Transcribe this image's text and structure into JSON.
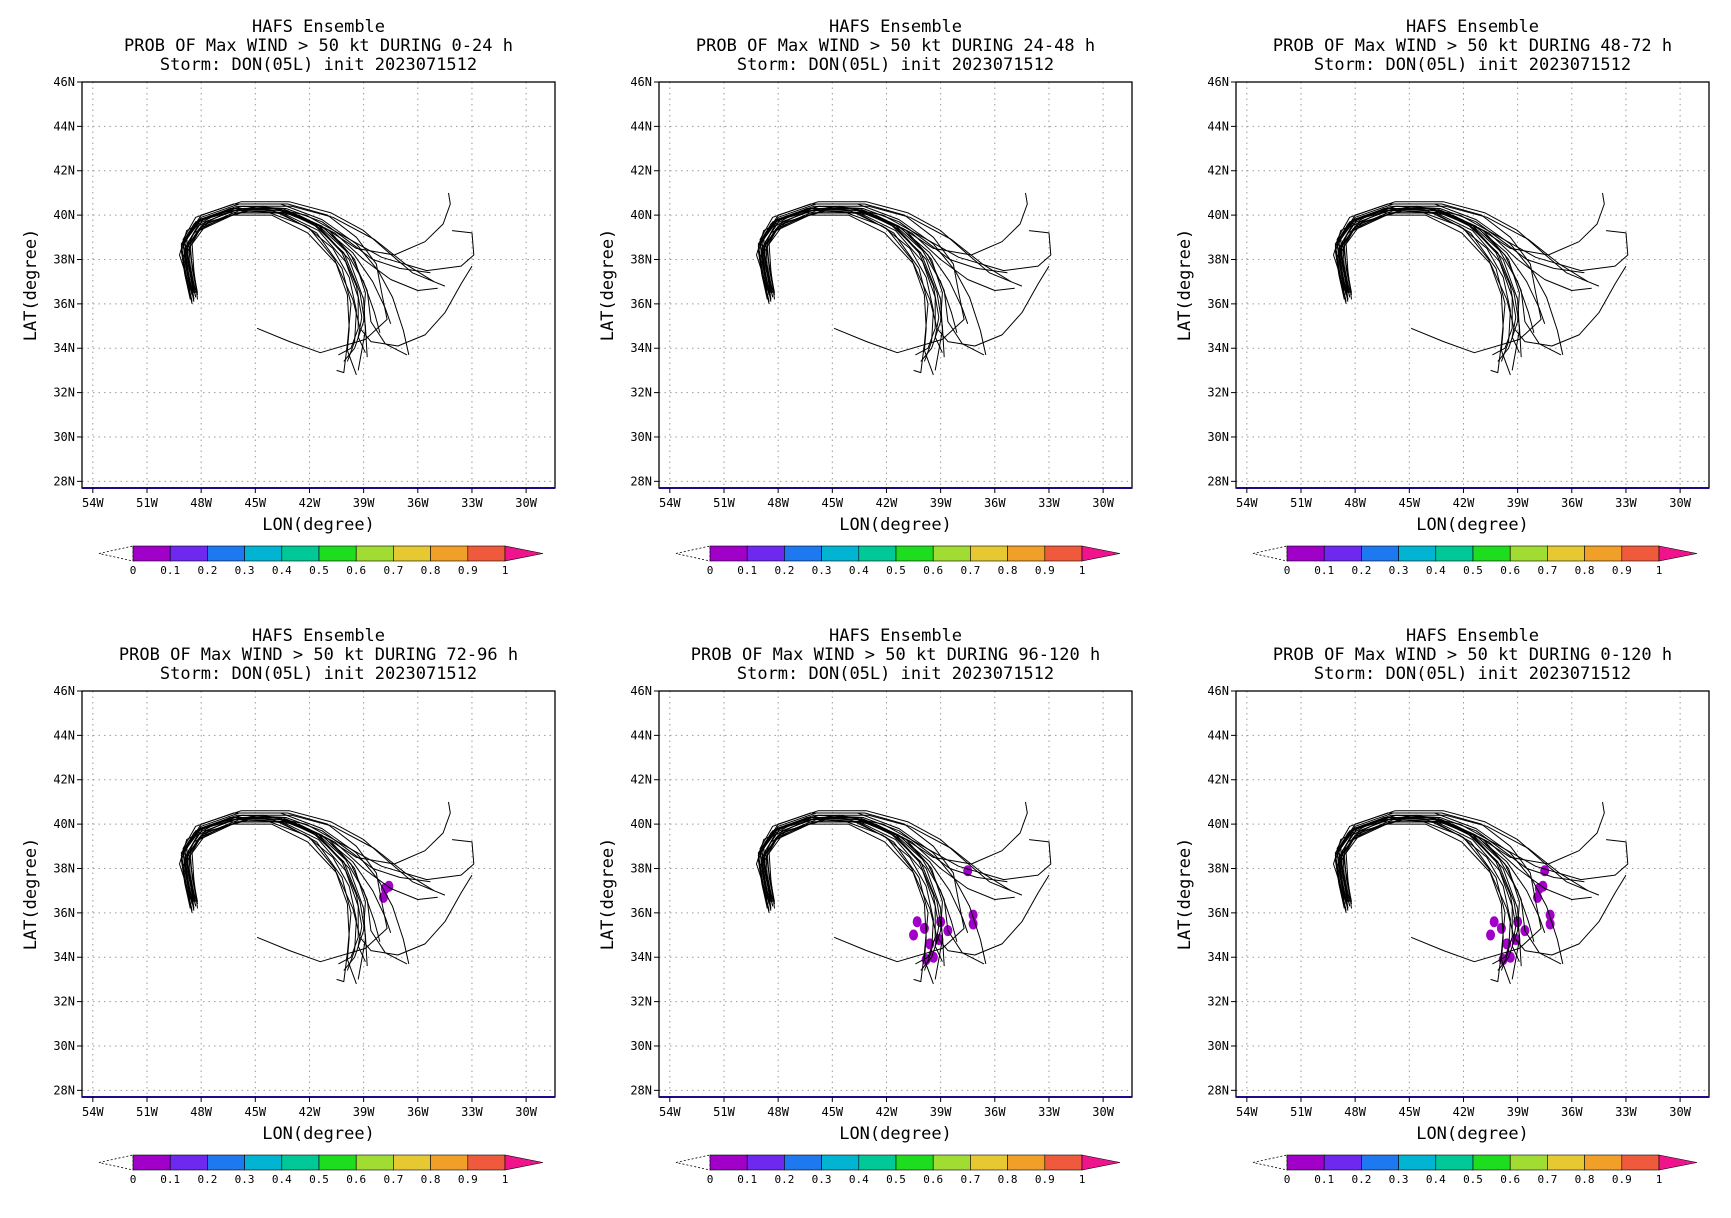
{
  "panels": [
    {
      "title_1": "HAFS Ensemble",
      "title_2": "PROB OF Max WIND > 50 kt DURING  0-24 h",
      "title_3": "Storm: DON(05L) init 2023071512",
      "blobs": []
    },
    {
      "title_1": "HAFS Ensemble",
      "title_2": "PROB OF Max WIND > 50 kt DURING 24-48 h",
      "title_3": "Storm: DON(05L) init 2023071512",
      "blobs": []
    },
    {
      "title_1": "HAFS Ensemble",
      "title_2": "PROB OF Max WIND > 50 kt DURING 48-72 h",
      "title_3": "Storm: DON(05L) init 2023071512",
      "blobs": []
    },
    {
      "title_1": "HAFS Ensemble",
      "title_2": "PROB OF Max WIND > 50 kt DURING 72-96 h",
      "title_3": "Storm: DON(05L) init 2023071512",
      "blobs": [
        {
          "lon": -37.8,
          "lat": 37.1,
          "p": 0.05
        },
        {
          "lon": -37.6,
          "lat": 37.2,
          "p": 0.05
        },
        {
          "lon": -37.9,
          "lat": 36.7,
          "p": 0.05
        }
      ]
    },
    {
      "title_1": "HAFS Ensemble",
      "title_2": "PROB OF Max WIND > 50 kt DURING 96-120 h",
      "title_3": "Storm: DON(05L) init 2023071512",
      "blobs": [
        {
          "lon": -40.3,
          "lat": 35.6,
          "p": 0.05
        },
        {
          "lon": -40.5,
          "lat": 35.0,
          "p": 0.05
        },
        {
          "lon": -39.9,
          "lat": 35.3,
          "p": 0.05
        },
        {
          "lon": -39.6,
          "lat": 34.6,
          "p": 0.05
        },
        {
          "lon": -39.4,
          "lat": 34.0,
          "p": 0.05
        },
        {
          "lon": -39.1,
          "lat": 34.8,
          "p": 0.05
        },
        {
          "lon": -39.0,
          "lat": 35.6,
          "p": 0.05
        },
        {
          "lon": -38.6,
          "lat": 35.2,
          "p": 0.05
        },
        {
          "lon": -39.8,
          "lat": 33.9,
          "p": 0.05
        },
        {
          "lon": -37.2,
          "lat": 35.9,
          "p": 0.05
        },
        {
          "lon": -37.2,
          "lat": 35.5,
          "p": 0.05
        },
        {
          "lon": -37.5,
          "lat": 37.9,
          "p": 0.05
        }
      ]
    },
    {
      "title_1": "HAFS Ensemble",
      "title_2": "PROB OF Max WIND > 50 kt DURING 0-120 h",
      "title_3": "Storm: DON(05L) init 2023071512",
      "blobs": [
        {
          "lon": -40.3,
          "lat": 35.6,
          "p": 0.05
        },
        {
          "lon": -40.5,
          "lat": 35.0,
          "p": 0.05
        },
        {
          "lon": -39.9,
          "lat": 35.3,
          "p": 0.05
        },
        {
          "lon": -39.6,
          "lat": 34.6,
          "p": 0.05
        },
        {
          "lon": -39.4,
          "lat": 34.0,
          "p": 0.05
        },
        {
          "lon": -39.1,
          "lat": 34.8,
          "p": 0.05
        },
        {
          "lon": -39.0,
          "lat": 35.6,
          "p": 0.05
        },
        {
          "lon": -38.6,
          "lat": 35.2,
          "p": 0.05
        },
        {
          "lon": -39.8,
          "lat": 33.9,
          "p": 0.05
        },
        {
          "lon": -37.2,
          "lat": 35.9,
          "p": 0.05
        },
        {
          "lon": -37.2,
          "lat": 35.5,
          "p": 0.05
        },
        {
          "lon": -37.5,
          "lat": 37.9,
          "p": 0.05
        },
        {
          "lon": -37.8,
          "lat": 37.1,
          "p": 0.05
        },
        {
          "lon": -37.6,
          "lat": 37.2,
          "p": 0.05
        },
        {
          "lon": -37.9,
          "lat": 36.7,
          "p": 0.05
        }
      ]
    }
  ],
  "axes": {
    "xlabel": "LON(degree)",
    "ylabel": "LAT(degree)",
    "xticks": [
      {
        "v": -54,
        "l": "54W"
      },
      {
        "v": -51,
        "l": "51W"
      },
      {
        "v": -48,
        "l": "48W"
      },
      {
        "v": -45,
        "l": "45W"
      },
      {
        "v": -42,
        "l": "42W"
      },
      {
        "v": -39,
        "l": "39W"
      },
      {
        "v": -36,
        "l": "36W"
      },
      {
        "v": -33,
        "l": "33W"
      },
      {
        "v": -30,
        "l": "30W"
      }
    ],
    "yticks": [
      {
        "v": 28,
        "l": "28N"
      },
      {
        "v": 30,
        "l": "30N"
      },
      {
        "v": 32,
        "l": "32N"
      },
      {
        "v": 34,
        "l": "34N"
      },
      {
        "v": 36,
        "l": "36N"
      },
      {
        "v": 38,
        "l": "38N"
      },
      {
        "v": 40,
        "l": "40N"
      },
      {
        "v": 42,
        "l": "42N"
      },
      {
        "v": 44,
        "l": "44N"
      },
      {
        "v": 46,
        "l": "46N"
      }
    ],
    "xlim": [
      -54.6,
      -28.4
    ],
    "ylim": [
      27.7,
      46
    ]
  },
  "colorbar": {
    "labels": [
      "0",
      "0.1",
      "0.2",
      "0.3",
      "0.4",
      "0.5",
      "0.6",
      "0.7",
      "0.8",
      "0.9",
      "1"
    ],
    "colors": [
      "#a000c8",
      "#6e28f0",
      "#1e78f0",
      "#00b4d2",
      "#00c896",
      "#1edc1e",
      "#a0dc32",
      "#e6c832",
      "#f0a028",
      "#f05a3c"
    ],
    "over_color": "#f0148c",
    "under_color": "#ffffff"
  },
  "chart_data": {
    "type": "map",
    "storm": "DON(05L)",
    "init": "2023071512",
    "xlabel": "LON(degree)",
    "ylabel": "LAT(degree)",
    "xlim": [
      -54.6,
      -28.4
    ],
    "ylim": [
      27.7,
      46
    ],
    "grid": true,
    "colorbar_levels": [
      0,
      0.1,
      0.2,
      0.3,
      0.4,
      0.5,
      0.6,
      0.7,
      0.8,
      0.9,
      1
    ],
    "tracks": [
      [
        [
          -48.4,
          36.2
        ],
        [
          -48.7,
          37.4
        ],
        [
          -48.9,
          38.5
        ],
        [
          -48.2,
          39.5
        ],
        [
          -46.3,
          40.2
        ],
        [
          -43.9,
          40.3
        ],
        [
          -41.8,
          39.6
        ],
        [
          -40.1,
          38.3
        ],
        [
          -39.2,
          36.5
        ],
        [
          -38.9,
          35.0
        ],
        [
          -38.8,
          33.6
        ]
      ],
      [
        [
          -48.2,
          36.4
        ],
        [
          -48.5,
          37.6
        ],
        [
          -48.6,
          38.7
        ],
        [
          -47.8,
          39.7
        ],
        [
          -45.8,
          40.3
        ],
        [
          -43.4,
          40.2
        ],
        [
          -41.4,
          39.4
        ],
        [
          -39.8,
          38.0
        ],
        [
          -39.0,
          36.2
        ],
        [
          -38.9,
          34.8
        ],
        [
          -39.3,
          33.0
        ]
      ],
      [
        [
          -48.6,
          36.6
        ],
        [
          -48.9,
          37.9
        ],
        [
          -49.0,
          38.9
        ],
        [
          -48.3,
          39.9
        ],
        [
          -46.2,
          40.5
        ],
        [
          -43.6,
          40.5
        ],
        [
          -41.3,
          39.8
        ],
        [
          -39.4,
          38.7
        ],
        [
          -38.2,
          37.5
        ],
        [
          -37.4,
          36.3
        ],
        [
          -36.8,
          34.8
        ],
        [
          -36.5,
          33.7
        ]
      ],
      [
        [
          -48.5,
          36.1
        ],
        [
          -48.8,
          37.2
        ],
        [
          -49.2,
          38.2
        ],
        [
          -48.8,
          39.3
        ],
        [
          -47.0,
          40.1
        ],
        [
          -44.6,
          40.4
        ],
        [
          -42.2,
          40.0
        ],
        [
          -40.2,
          39.1
        ],
        [
          -38.0,
          38.1
        ],
        [
          -35.5,
          37.5
        ],
        [
          -33.6,
          37.7
        ],
        [
          -32.9,
          38.2
        ],
        [
          -33.0,
          39.2
        ],
        [
          -34.1,
          39.3
        ]
      ],
      [
        [
          -48.3,
          36.3
        ],
        [
          -48.6,
          37.3
        ],
        [
          -48.8,
          38.3
        ],
        [
          -48.1,
          39.3
        ],
        [
          -46.0,
          40.1
        ],
        [
          -43.6,
          40.1
        ],
        [
          -41.6,
          39.2
        ],
        [
          -40.2,
          37.6
        ],
        [
          -39.7,
          36.0
        ],
        [
          -39.9,
          34.2
        ],
        [
          -40.1,
          32.9
        ],
        [
          -40.5,
          33.0
        ]
      ],
      [
        [
          -48.4,
          36.5
        ],
        [
          -48.7,
          37.7
        ],
        [
          -48.9,
          38.8
        ],
        [
          -48.0,
          39.8
        ],
        [
          -45.7,
          40.4
        ],
        [
          -43.0,
          40.4
        ],
        [
          -40.7,
          39.9
        ],
        [
          -38.4,
          38.9
        ],
        [
          -36.7,
          37.8
        ],
        [
          -35.1,
          37.0
        ],
        [
          -34.5,
          36.8
        ]
      ],
      [
        [
          -48.6,
          36.3
        ],
        [
          -48.9,
          37.5
        ],
        [
          -49.1,
          38.6
        ],
        [
          -48.4,
          39.6
        ],
        [
          -46.4,
          40.3
        ],
        [
          -44.0,
          40.2
        ],
        [
          -42.0,
          39.4
        ],
        [
          -40.6,
          38.0
        ],
        [
          -39.9,
          36.4
        ],
        [
          -39.8,
          34.9
        ],
        [
          -39.9,
          33.9
        ],
        [
          -39.4,
          32.8
        ]
      ],
      [
        [
          -48.2,
          36.2
        ],
        [
          -48.4,
          37.5
        ],
        [
          -48.5,
          38.7
        ],
        [
          -47.6,
          39.7
        ],
        [
          -45.3,
          40.2
        ],
        [
          -42.6,
          40.0
        ],
        [
          -40.6,
          39.2
        ],
        [
          -39.0,
          38.0
        ],
        [
          -37.5,
          37.1
        ],
        [
          -36.0,
          36.6
        ],
        [
          -34.9,
          36.7
        ]
      ],
      [
        [
          -48.5,
          36.4
        ],
        [
          -48.8,
          37.6
        ],
        [
          -48.9,
          38.8
        ],
        [
          -48.1,
          39.8
        ],
        [
          -46.0,
          40.4
        ],
        [
          -43.5,
          40.3
        ],
        [
          -41.3,
          39.5
        ],
        [
          -39.7,
          38.2
        ],
        [
          -38.8,
          36.6
        ],
        [
          -38.6,
          35.2
        ],
        [
          -37.8,
          34.2
        ],
        [
          -36.6,
          33.7
        ]
      ],
      [
        [
          -48.4,
          36.2
        ],
        [
          -48.6,
          37.4
        ],
        [
          -48.8,
          38.5
        ],
        [
          -48.0,
          39.5
        ],
        [
          -45.9,
          40.2
        ],
        [
          -43.3,
          40.1
        ],
        [
          -41.1,
          39.4
        ],
        [
          -39.4,
          38.5
        ],
        [
          -37.3,
          38.2
        ],
        [
          -35.6,
          38.8
        ],
        [
          -34.6,
          39.6
        ],
        [
          -34.2,
          40.5
        ],
        [
          -34.3,
          41.0
        ]
      ],
      [
        [
          -48.3,
          36.6
        ],
        [
          -48.7,
          37.8
        ],
        [
          -48.8,
          38.9
        ],
        [
          -48.0,
          39.9
        ],
        [
          -45.9,
          40.5
        ],
        [
          -43.2,
          40.5
        ],
        [
          -41.0,
          40.0
        ],
        [
          -39.4,
          39.0
        ],
        [
          -38.3,
          37.8
        ],
        [
          -38.0,
          36.5
        ],
        [
          -37.7,
          35.3
        ],
        [
          -38.9,
          34.4
        ],
        [
          -41.4,
          33.8
        ],
        [
          -43.1,
          34.3
        ],
        [
          -44.9,
          34.9
        ]
      ],
      [
        [
          -48.5,
          36.0
        ],
        [
          -48.8,
          37.1
        ],
        [
          -49.0,
          38.1
        ],
        [
          -48.4,
          39.2
        ],
        [
          -46.5,
          40.0
        ],
        [
          -44.1,
          40.0
        ],
        [
          -42.1,
          39.2
        ],
        [
          -40.5,
          37.8
        ],
        [
          -39.6,
          36.2
        ],
        [
          -39.2,
          34.9
        ],
        [
          -38.6,
          34.3
        ],
        [
          -37.1,
          34.1
        ],
        [
          -35.6,
          34.6
        ],
        [
          -34.5,
          35.6
        ],
        [
          -33.6,
          36.9
        ],
        [
          -33.0,
          37.7
        ]
      ],
      [
        [
          -48.2,
          36.5
        ],
        [
          -48.5,
          37.8
        ],
        [
          -48.7,
          38.8
        ],
        [
          -47.9,
          39.8
        ],
        [
          -45.7,
          40.3
        ],
        [
          -43.2,
          40.2
        ],
        [
          -41.2,
          39.4
        ],
        [
          -39.6,
          38.3
        ],
        [
          -38.5,
          37.0
        ],
        [
          -37.8,
          35.8
        ],
        [
          -37.5,
          35.1
        ]
      ],
      [
        [
          -48.6,
          36.2
        ],
        [
          -48.9,
          37.3
        ],
        [
          -49.1,
          38.4
        ],
        [
          -48.5,
          39.4
        ],
        [
          -46.6,
          40.1
        ],
        [
          -44.2,
          40.1
        ],
        [
          -42.2,
          39.5
        ],
        [
          -40.7,
          38.5
        ],
        [
          -39.8,
          37.2
        ],
        [
          -39.4,
          35.7
        ],
        [
          -39.5,
          34.3
        ],
        [
          -39.9,
          33.4
        ]
      ],
      [
        [
          -48.4,
          36.7
        ],
        [
          -48.7,
          37.9
        ],
        [
          -48.8,
          39.0
        ],
        [
          -48.0,
          40.0
        ],
        [
          -45.8,
          40.6
        ],
        [
          -43.1,
          40.6
        ],
        [
          -40.8,
          40.1
        ],
        [
          -39.0,
          39.3
        ],
        [
          -37.6,
          38.3
        ],
        [
          -36.3,
          37.4
        ],
        [
          -35.1,
          37.0
        ]
      ],
      [
        [
          -48.3,
          36.3
        ],
        [
          -48.6,
          37.5
        ],
        [
          -48.8,
          38.6
        ],
        [
          -47.8,
          39.6
        ],
        [
          -45.5,
          40.2
        ],
        [
          -42.9,
          40.1
        ],
        [
          -40.9,
          39.3
        ],
        [
          -39.5,
          38.0
        ],
        [
          -38.9,
          36.5
        ],
        [
          -39.0,
          35.2
        ],
        [
          -39.5,
          34.0
        ],
        [
          -40.1,
          33.4
        ]
      ],
      [
        [
          -48.5,
          36.4
        ],
        [
          -48.8,
          37.6
        ],
        [
          -49.0,
          38.7
        ],
        [
          -48.2,
          39.7
        ],
        [
          -46.1,
          40.3
        ],
        [
          -43.7,
          40.3
        ],
        [
          -41.6,
          39.6
        ],
        [
          -40.0,
          38.4
        ],
        [
          -39.0,
          37.0
        ],
        [
          -38.4,
          35.6
        ],
        [
          -38.1,
          34.7
        ]
      ],
      [
        [
          -48.4,
          36.1
        ],
        [
          -48.7,
          37.3
        ],
        [
          -48.9,
          38.4
        ],
        [
          -48.1,
          39.4
        ],
        [
          -46.0,
          40.1
        ],
        [
          -43.5,
          40.1
        ],
        [
          -41.5,
          39.3
        ],
        [
          -40.0,
          37.9
        ],
        [
          -39.3,
          36.3
        ],
        [
          -39.3,
          34.9
        ],
        [
          -39.7,
          34.0
        ],
        [
          -40.4,
          33.7
        ]
      ],
      [
        [
          -48.3,
          36.5
        ],
        [
          -48.6,
          37.7
        ],
        [
          -48.7,
          38.8
        ],
        [
          -47.9,
          39.8
        ],
        [
          -45.8,
          40.4
        ],
        [
          -43.3,
          40.3
        ],
        [
          -41.3,
          39.7
        ],
        [
          -39.8,
          38.8
        ],
        [
          -38.5,
          38.0
        ],
        [
          -37.0,
          37.6
        ],
        [
          -35.3,
          37.4
        ]
      ],
      [
        [
          -48.6,
          36.4
        ],
        [
          -48.9,
          37.6
        ],
        [
          -49.1,
          38.7
        ],
        [
          -48.3,
          39.7
        ],
        [
          -46.3,
          40.3
        ],
        [
          -43.8,
          40.3
        ],
        [
          -41.7,
          39.6
        ],
        [
          -40.2,
          38.3
        ],
        [
          -39.4,
          36.8
        ],
        [
          -39.1,
          35.4
        ],
        [
          -39.3,
          34.5
        ],
        [
          -38.9,
          33.8
        ]
      ]
    ]
  }
}
